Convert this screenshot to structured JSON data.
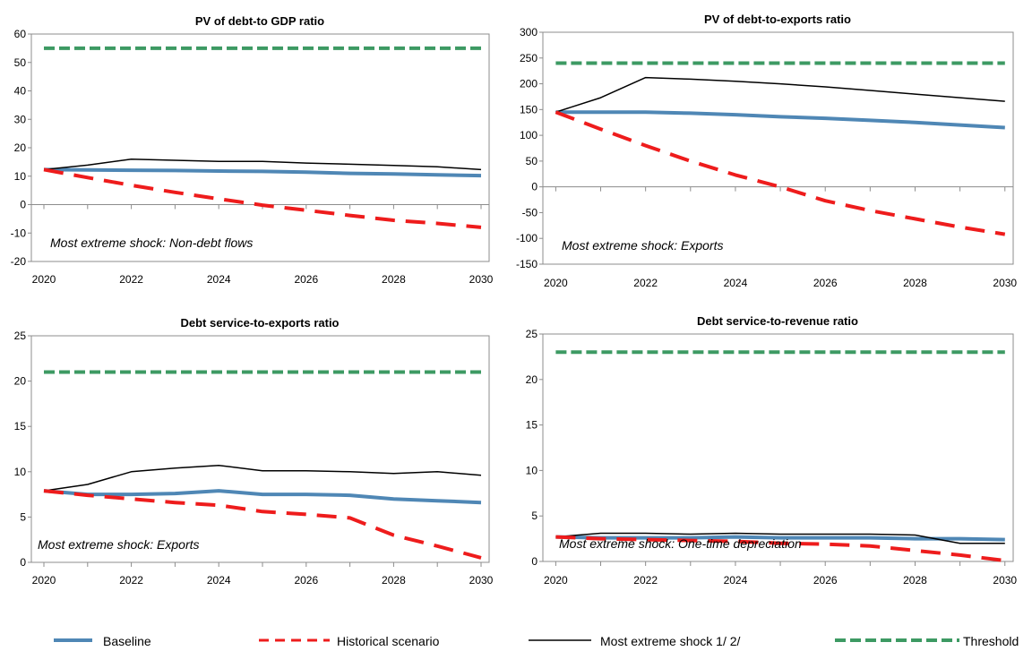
{
  "colors": {
    "baseline": "#4f87b5",
    "historical": "#ee1c1c",
    "shock": "#000000",
    "threshold": "#3d9a63"
  },
  "legend": {
    "baseline": "Baseline",
    "historical": "Historical scenario",
    "shock": "Most extreme shock 1/ 2/",
    "threshold": "Threshold"
  },
  "chart_data": [
    {
      "type": "line",
      "title": "PV of debt-to GDP ratio",
      "annotation": "Most extreme shock: Non-debt flows",
      "x": [
        2020,
        2021,
        2022,
        2023,
        2024,
        2025,
        2026,
        2027,
        2028,
        2029,
        2030
      ],
      "x_ticks": [
        "2020",
        "2022",
        "2024",
        "2026",
        "2028",
        "2030"
      ],
      "ylim": [
        -20,
        60
      ],
      "y_ticks": [
        "-20",
        "-10",
        "0",
        "10",
        "20",
        "30",
        "40",
        "50",
        "60"
      ],
      "series": [
        {
          "name": "Baseline",
          "key": "baseline",
          "values": [
            12.3,
            12.2,
            12.1,
            12.0,
            11.8,
            11.7,
            11.4,
            11.0,
            10.8,
            10.5,
            10.2
          ]
        },
        {
          "name": "Historical scenario",
          "key": "historical",
          "values": [
            12.3,
            9.5,
            6.8,
            4.3,
            2.0,
            -0.2,
            -2.0,
            -3.8,
            -5.5,
            -6.6,
            -8.0
          ]
        },
        {
          "name": "Most extreme shock 1/ 2/",
          "key": "shock",
          "values": [
            12.3,
            13.9,
            16.0,
            15.6,
            15.2,
            15.2,
            14.6,
            14.2,
            13.8,
            13.3,
            12.3
          ]
        },
        {
          "name": "Threshold",
          "key": "threshold",
          "values": [
            55,
            55,
            55,
            55,
            55,
            55,
            55,
            55,
            55,
            55,
            55
          ]
        }
      ]
    },
    {
      "type": "line",
      "title": "PV of debt-to-exports  ratio",
      "annotation": "Most extreme shock:  Exports",
      "x": [
        2020,
        2021,
        2022,
        2023,
        2024,
        2025,
        2026,
        2027,
        2028,
        2029,
        2030
      ],
      "x_ticks": [
        "2020",
        "2022",
        "2024",
        "2026",
        "2028",
        "2030"
      ],
      "ylim": [
        -150,
        300
      ],
      "y_ticks": [
        "-150",
        "-100",
        "-50",
        "0",
        "50",
        "100",
        "150",
        "200",
        "250",
        "300"
      ],
      "series": [
        {
          "name": "Baseline",
          "key": "baseline",
          "values": [
            145,
            145,
            145,
            143,
            140,
            136,
            133,
            129,
            125,
            120,
            115
          ]
        },
        {
          "name": "Historical scenario",
          "key": "historical",
          "values": [
            145,
            112,
            80,
            50,
            23,
            0,
            -27,
            -46,
            -62,
            -78,
            -92
          ]
        },
        {
          "name": "Most extreme shock 1/ 2/",
          "key": "shock",
          "values": [
            145,
            173,
            212,
            209,
            205,
            200,
            194,
            187,
            180,
            173,
            166
          ]
        },
        {
          "name": "Threshold",
          "key": "threshold",
          "values": [
            240,
            240,
            240,
            240,
            240,
            240,
            240,
            240,
            240,
            240,
            240
          ]
        }
      ]
    },
    {
      "type": "line",
      "title": "Debt service-to-exports  ratio",
      "annotation": "Most extreme shock:  Exports",
      "x": [
        2020,
        2021,
        2022,
        2023,
        2024,
        2025,
        2026,
        2027,
        2028,
        2029,
        2030
      ],
      "x_ticks": [
        "2020",
        "2022",
        "2024",
        "2026",
        "2028",
        "2030"
      ],
      "ylim": [
        0,
        25
      ],
      "y_ticks": [
        "0",
        "5",
        "10",
        "15",
        "20",
        "25"
      ],
      "series": [
        {
          "name": "Baseline",
          "key": "baseline",
          "values": [
            7.9,
            7.5,
            7.5,
            7.6,
            7.9,
            7.5,
            7.5,
            7.4,
            7.0,
            6.8,
            6.6
          ]
        },
        {
          "name": "Historical scenario",
          "key": "historical",
          "values": [
            7.9,
            7.4,
            7.0,
            6.6,
            6.3,
            5.6,
            5.3,
            4.9,
            3.0,
            1.8,
            0.5
          ]
        },
        {
          "name": "Most extreme shock 1/ 2/",
          "key": "shock",
          "values": [
            7.9,
            8.6,
            10.0,
            10.4,
            10.7,
            10.1,
            10.1,
            10.0,
            9.8,
            10.0,
            9.6
          ]
        },
        {
          "name": "Threshold",
          "key": "threshold",
          "values": [
            21,
            21,
            21,
            21,
            21,
            21,
            21,
            21,
            21,
            21,
            21
          ]
        }
      ]
    },
    {
      "type": "line",
      "title": "Debt service-to-revenue  ratio",
      "annotation": "Most extreme shock:  One-time depreciation",
      "x": [
        2020,
        2021,
        2022,
        2023,
        2024,
        2025,
        2026,
        2027,
        2028,
        2029,
        2030
      ],
      "x_ticks": [
        "2020",
        "2022",
        "2024",
        "2026",
        "2028",
        "2030"
      ],
      "ylim": [
        0,
        25
      ],
      "y_ticks": [
        "0",
        "5",
        "10",
        "15",
        "20",
        "25"
      ],
      "series": [
        {
          "name": "Baseline",
          "key": "baseline",
          "values": [
            2.7,
            2.6,
            2.6,
            2.6,
            2.7,
            2.6,
            2.6,
            2.6,
            2.5,
            2.5,
            2.4
          ]
        },
        {
          "name": "Historical scenario",
          "key": "historical",
          "values": [
            2.7,
            2.5,
            2.4,
            2.3,
            2.2,
            2.0,
            1.9,
            1.7,
            1.2,
            0.7,
            0.1
          ]
        },
        {
          "name": "Most extreme shock 1/ 2/",
          "key": "shock",
          "values": [
            2.7,
            3.1,
            3.1,
            3.0,
            3.1,
            3.0,
            3.0,
            3.0,
            2.9,
            2.0,
            2.0
          ]
        },
        {
          "name": "Threshold",
          "key": "threshold",
          "values": [
            23,
            23,
            23,
            23,
            23,
            23,
            23,
            23,
            23,
            23,
            23
          ]
        }
      ]
    }
  ]
}
